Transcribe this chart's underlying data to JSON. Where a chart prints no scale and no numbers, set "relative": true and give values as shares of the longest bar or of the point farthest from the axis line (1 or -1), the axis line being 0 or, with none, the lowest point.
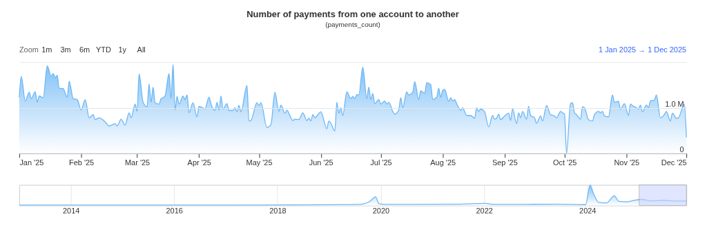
{
  "chart_data": [
    {
      "type": "area",
      "title": "Number of payments from one account to another",
      "subtitle": "(payments_count)",
      "annotations": [
        "Zoom",
        "1m",
        "3m",
        "6m",
        "YTD",
        "1y",
        "All",
        "1 Jan 2025 → 1 Dec 2025"
      ],
      "x": [
        "2025-01-01",
        "2025-01-02",
        "2025-01-04",
        "2025-01-06",
        "2025-01-07",
        "2025-01-09",
        "2025-01-10",
        "2025-01-11",
        "2025-01-13",
        "2025-01-15",
        "2025-01-17",
        "2025-01-18",
        "2025-01-19",
        "2025-01-20",
        "2025-01-21",
        "2025-01-23",
        "2025-01-25",
        "2025-01-26",
        "2025-01-28",
        "2025-01-30",
        "2025-02-01",
        "2025-02-03",
        "2025-02-05",
        "2025-02-07",
        "2025-02-08",
        "2025-02-10",
        "2025-02-13",
        "2025-02-15",
        "2025-02-18",
        "2025-02-19",
        "2025-02-21",
        "2025-02-23",
        "2025-02-25",
        "2025-02-26",
        "2025-02-28",
        "2025-03-01",
        "2025-03-02",
        "2025-03-04",
        "2025-03-06",
        "2025-03-07",
        "2025-03-08",
        "2025-03-09",
        "2025-03-10",
        "2025-03-12",
        "2025-03-13",
        "2025-03-14",
        "2025-03-15",
        "2025-03-17",
        "2025-03-18",
        "2025-03-19",
        "2025-03-20",
        "2025-03-21",
        "2025-03-22",
        "2025-03-24",
        "2025-03-25",
        "2025-03-26",
        "2025-03-27",
        "2025-03-29",
        "2025-03-31",
        "2025-04-01",
        "2025-04-04",
        "2025-04-06",
        "2025-04-07",
        "2025-04-09",
        "2025-04-10",
        "2025-04-11",
        "2025-04-12",
        "2025-04-13",
        "2025-04-15",
        "2025-04-16",
        "2025-04-18",
        "2025-04-19",
        "2025-04-20",
        "2025-04-21",
        "2025-04-22",
        "2025-04-25",
        "2025-04-26",
        "2025-04-27",
        "2025-04-30",
        "2025-05-01",
        "2025-05-02",
        "2025-05-05",
        "2025-05-07",
        "2025-05-09",
        "2025-05-11",
        "2025-05-12",
        "2025-05-14",
        "2025-05-15",
        "2025-05-17",
        "2025-05-18",
        "2025-05-19",
        "2025-05-21",
        "2025-05-23",
        "2025-05-25",
        "2025-05-26",
        "2025-05-27",
        "2025-05-28",
        "2025-05-29",
        "2025-05-30",
        "2025-06-01",
        "2025-06-04",
        "2025-06-05",
        "2025-06-06",
        "2025-06-08",
        "2025-06-09",
        "2025-06-10",
        "2025-06-11",
        "2025-06-12",
        "2025-06-14",
        "2025-06-16",
        "2025-06-17",
        "2025-06-18",
        "2025-06-19",
        "2025-06-20",
        "2025-06-22",
        "2025-06-24",
        "2025-06-25",
        "2025-06-26",
        "2025-06-27",
        "2025-06-28",
        "2025-06-30",
        "2025-07-01",
        "2025-07-03",
        "2025-07-04",
        "2025-07-05",
        "2025-07-07",
        "2025-07-08",
        "2025-07-10",
        "2025-07-11",
        "2025-07-12",
        "2025-07-14",
        "2025-07-15",
        "2025-07-17",
        "2025-07-18",
        "2025-07-20",
        "2025-07-21",
        "2025-07-23",
        "2025-07-24",
        "2025-07-26",
        "2025-07-27",
        "2025-07-29",
        "2025-07-30",
        "2025-07-31",
        "2025-08-01",
        "2025-08-02",
        "2025-08-04",
        "2025-08-05",
        "2025-08-06",
        "2025-08-07",
        "2025-08-08",
        "2025-08-10",
        "2025-08-11",
        "2025-08-13",
        "2025-08-15",
        "2025-08-17",
        "2025-08-18",
        "2025-08-19",
        "2025-08-20",
        "2025-08-22",
        "2025-08-24",
        "2025-08-26",
        "2025-08-27",
        "2025-08-28",
        "2025-08-29",
        "2025-08-30",
        "2025-09-01",
        "2025-09-03",
        "2025-09-04",
        "2025-09-05",
        "2025-09-07",
        "2025-09-08",
        "2025-09-09",
        "2025-09-10",
        "2025-09-12",
        "2025-09-13",
        "2025-09-14",
        "2025-09-16",
        "2025-09-17",
        "2025-09-19",
        "2025-09-20",
        "2025-09-22",
        "2025-09-24",
        "2025-09-26",
        "2025-09-27",
        "2025-09-29",
        "2025-09-30",
        "2025-10-01",
        "2025-10-02",
        "2025-10-04",
        "2025-10-05",
        "2025-10-06",
        "2025-10-07",
        "2025-10-09",
        "2025-10-10",
        "2025-10-11",
        "2025-10-13",
        "2025-10-15",
        "2025-10-16",
        "2025-10-18",
        "2025-10-19",
        "2025-10-20",
        "2025-10-21",
        "2025-10-23",
        "2025-10-25",
        "2025-10-26",
        "2025-10-28",
        "2025-10-29",
        "2025-10-31",
        "2025-11-02",
        "2025-11-03",
        "2025-11-04",
        "2025-11-06",
        "2025-11-07",
        "2025-11-08",
        "2025-11-09",
        "2025-11-11",
        "2025-11-12",
        "2025-11-13",
        "2025-11-15",
        "2025-11-16",
        "2025-11-18",
        "2025-11-20",
        "2025-11-21",
        "2025-11-23",
        "2025-11-24",
        "2025-11-26",
        "2025-11-27",
        "2025-11-30",
        "2025-12-01"
      ],
      "series": [
        {
          "color": "#6cb6f5",
          "values": [
            1230000,
            1690000,
            1150000,
            1340000,
            1200000,
            1350000,
            1120000,
            1260000,
            1220000,
            1920000,
            1690000,
            1750000,
            1660000,
            1710000,
            1430000,
            1420000,
            1230000,
            1580000,
            1200000,
            1180000,
            950000,
            1180000,
            780000,
            850000,
            740000,
            780000,
            690000,
            600000,
            650000,
            600000,
            750000,
            620000,
            890000,
            780000,
            1080000,
            920000,
            1740000,
            1120000,
            1020000,
            1520000,
            1120000,
            1450000,
            1110000,
            1080000,
            1200000,
            1220000,
            1260000,
            1750000,
            1200000,
            1950000,
            950000,
            1250000,
            1080000,
            1260000,
            1180000,
            1280000,
            890000,
            1110000,
            800000,
            1030000,
            980000,
            1230000,
            1080000,
            940000,
            1120000,
            950000,
            1260000,
            970000,
            1090000,
            940000,
            940000,
            1000000,
            910000,
            1050000,
            910000,
            1490000,
            710000,
            720000,
            1110000,
            1050000,
            1110000,
            570000,
            630000,
            1340000,
            920000,
            1060000,
            880000,
            950000,
            780000,
            720000,
            750000,
            740000,
            890000,
            720000,
            770000,
            710000,
            850000,
            780000,
            820000,
            910000,
            540000,
            710000,
            660000,
            490000,
            1120000,
            880000,
            1000000,
            830000,
            1350000,
            1200000,
            1250000,
            1200000,
            1290000,
            1280000,
            1890000,
            1200000,
            1450000,
            1180000,
            1310000,
            1090000,
            1180000,
            1080000,
            1150000,
            1080000,
            1120000,
            920000,
            860000,
            950000,
            1220000,
            1000000,
            1350000,
            1280000,
            1340000,
            1570000,
            1180000,
            1370000,
            1320000,
            1550000,
            1510000,
            1180000,
            1230000,
            1430000,
            1230000,
            1380000,
            1400000,
            1140000,
            1220000,
            1150000,
            1180000,
            1090000,
            940000,
            1000000,
            830000,
            830000,
            770000,
            1000000,
            920000,
            970000,
            910000,
            580000,
            830000,
            750000,
            770000,
            860000,
            740000,
            820000,
            880000,
            720000,
            980000,
            650000,
            890000,
            780000,
            920000,
            750000,
            1030000,
            830000,
            780000,
            660000,
            820000,
            710000,
            1050000,
            850000,
            820000,
            780000,
            920000,
            890000,
            860000,
            0,
            1090000,
            1110000,
            890000,
            850000,
            750000,
            1020000,
            1000000,
            740000,
            710000,
            850000,
            920000,
            890000,
            920000,
            820000,
            800000,
            1280000,
            1120000,
            1140000,
            970000,
            1090000,
            830000,
            1080000,
            1050000,
            1000000,
            970000,
            1060000,
            910000,
            1060000,
            1000000,
            1150000,
            1170000,
            1280000,
            780000,
            850000,
            920000,
            710000,
            880000,
            770000,
            780000,
            1080000,
            350000
          ]
        }
      ],
      "xlim": [
        "2025-01-01",
        "2025-12-01"
      ],
      "xticks": [
        {
          "value": "2025-01-01",
          "label": "Jan '25"
        },
        {
          "value": "2025-02-01",
          "label": "Feb '25"
        },
        {
          "value": "2025-03-01",
          "label": "Mar '25"
        },
        {
          "value": "2025-04-01",
          "label": "Apr '25"
        },
        {
          "value": "2025-05-01",
          "label": "May '25"
        },
        {
          "value": "2025-06-01",
          "label": "Jun '25"
        },
        {
          "value": "2025-07-01",
          "label": "Jul '25"
        },
        {
          "value": "2025-08-01",
          "label": "Aug '25"
        },
        {
          "value": "2025-09-01",
          "label": "Sep '25"
        },
        {
          "value": "2025-10-01",
          "label": "Oct '25"
        },
        {
          "value": "2025-11-01",
          "label": "Nov '25"
        },
        {
          "value": "2025-12-01",
          "label": "Dec '25"
        }
      ],
      "ylim": [
        0,
        2000000
      ],
      "yticks": [
        0,
        {
          "value": 1000000,
          "label": "1.0 M"
        },
        {
          "value": 2000000,
          "label": null
        }
      ],
      "grid": "y"
    },
    {
      "type": "area",
      "relative": true,
      "tick_labels": "x",
      "grid": "x",
      "x": [
        "2013-01-01",
        "2015-01-01",
        "2017-01-01",
        "2018-06-01",
        "2019-08-01",
        "2019-10-15",
        "2019-11-25",
        "2019-12-20",
        "2020-03-01",
        "2021-06-01",
        "2022-01-10",
        "2022-03-01",
        "2023-06-01",
        "2023-12-20",
        "2024-01-20",
        "2024-02-15",
        "2024-03-20",
        "2024-05-15",
        "2024-07-10",
        "2024-08-10",
        "2024-10-01",
        "2024-12-01",
        "2025-01-15",
        "2025-04-01",
        "2025-06-20",
        "2025-09-01",
        "2025-12-01"
      ],
      "series": [
        {
          "color": "#6cb6f5",
          "values": [
            0.02,
            0.02,
            0.02,
            0.03,
            0.05,
            0.19,
            0.42,
            0.08,
            0.05,
            0.06,
            0.1,
            0.05,
            0.06,
            0.04,
            1,
            0.55,
            0.15,
            0.12,
            0.47,
            0.2,
            0.18,
            0.25,
            0.3,
            0.22,
            0.25,
            0.22,
            0.22
          ]
        }
      ],
      "xlim": [
        "2013-01-01",
        "2025-12-01"
      ],
      "xticks": [
        {
          "value": "2014",
          "label": "2014"
        },
        {
          "value": "2016",
          "label": "2016"
        },
        {
          "value": "2018",
          "label": "2018"
        },
        {
          "value": "2020",
          "label": "2020"
        },
        {
          "value": "2022",
          "label": "2022"
        },
        {
          "value": "2024",
          "label": "2024"
        }
      ],
      "bands": [
        {
          "axis": "x",
          "from": "2025-01-01",
          "to": "2025-12-01",
          "color": "#ccd6ff"
        }
      ]
    }
  ]
}
